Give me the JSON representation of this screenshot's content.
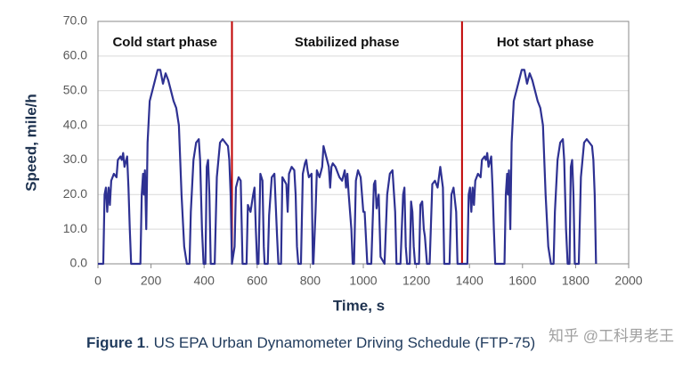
{
  "chart_data": {
    "type": "line",
    "caption_label": "Figure 1",
    "caption": ". US EPA Urban Dynamometer Driving Schedule (FTP-75)",
    "watermark": "知乎 @工科男老王",
    "x_label": "Time, s",
    "y_label": "Speed, mile/h",
    "color": "#2e3192",
    "boundary_color": "#c00000",
    "grid": true,
    "phases": [
      "Cold start phase",
      "Stabilized phase",
      "Hot start phase"
    ],
    "phase_boundaries": [
      505,
      1372
    ],
    "xlim": [
      0,
      2000
    ],
    "ylim": [
      0,
      70
    ],
    "xticks": [
      0,
      200,
      400,
      600,
      800,
      1000,
      1200,
      1400,
      1600,
      1800,
      2000
    ],
    "yticks": [
      {
        "value": 0,
        "label": "0.0"
      },
      {
        "value": 10,
        "label": "10.0"
      },
      {
        "value": 20,
        "label": "20.0"
      },
      {
        "value": 30,
        "label": "30.0"
      },
      {
        "value": 40,
        "label": "40.0"
      },
      {
        "value": 50,
        "label": "50.0"
      },
      {
        "value": 60,
        "label": "60.0"
      },
      {
        "value": 70,
        "label": "70.0"
      }
    ],
    "x": [
      0,
      20,
      25,
      30,
      35,
      40,
      45,
      50,
      60,
      70,
      75,
      85,
      90,
      95,
      100,
      110,
      115,
      120,
      125,
      160,
      165,
      170,
      173,
      177,
      182,
      187,
      195,
      205,
      215,
      225,
      235,
      245,
      255,
      265,
      275,
      285,
      295,
      305,
      315,
      325,
      335,
      345,
      350,
      360,
      370,
      380,
      385,
      392,
      398,
      405,
      410,
      415,
      420,
      425,
      440,
      448,
      460,
      470,
      480,
      490,
      495,
      500,
      505,
      515,
      520,
      530,
      538,
      545,
      560,
      565,
      575,
      585,
      590,
      595,
      600,
      605,
      612,
      620,
      625,
      628,
      640,
      645,
      655,
      665,
      675,
      680,
      690,
      695,
      710,
      715,
      720,
      730,
      740,
      745,
      750,
      755,
      765,
      772,
      780,
      785,
      790,
      795,
      805,
      810,
      812,
      820,
      825,
      835,
      845,
      850,
      860,
      870,
      875,
      880,
      885,
      895,
      905,
      910,
      920,
      930,
      935,
      940,
      945,
      955,
      960,
      965,
      972,
      980,
      990,
      1000,
      1005,
      1015,
      1030,
      1040,
      1045,
      1050,
      1058,
      1065,
      1080,
      1090,
      1100,
      1110,
      1120,
      1125,
      1140,
      1150,
      1155,
      1160,
      1165,
      1175,
      1180,
      1185,
      1190,
      1195,
      1210,
      1215,
      1222,
      1228,
      1232,
      1240,
      1250,
      1260,
      1270,
      1280,
      1290,
      1300,
      1305,
      1325,
      1332,
      1340,
      1350,
      1355,
      1372,
      1392,
      1397,
      1402,
      1407,
      1412,
      1417,
      1422,
      1432,
      1442,
      1447,
      1457,
      1462,
      1467,
      1472,
      1482,
      1487,
      1492,
      1497,
      1532,
      1537,
      1542,
      1545,
      1549,
      1554,
      1559,
      1567,
      1577,
      1587,
      1597,
      1607,
      1617,
      1627,
      1637,
      1647,
      1657,
      1667,
      1677,
      1687,
      1697,
      1707,
      1717,
      1722,
      1732,
      1742,
      1752,
      1757,
      1764,
      1770,
      1777,
      1782,
      1787,
      1792,
      1797,
      1812,
      1820,
      1832,
      1842,
      1852,
      1862,
      1867,
      1872,
      1877
    ],
    "values": [
      0,
      0,
      20,
      22,
      15,
      22,
      17,
      24,
      26,
      25,
      30,
      31,
      30,
      32,
      28,
      31,
      22,
      10,
      0,
      0,
      20,
      26,
      20,
      27,
      10,
      35,
      47,
      50,
      53,
      56,
      56,
      52,
      55,
      53,
      50,
      47,
      45,
      40,
      20,
      5,
      0,
      0,
      15,
      30,
      35,
      36,
      30,
      10,
      0,
      0,
      28,
      30,
      20,
      0,
      0,
      25,
      35,
      36,
      35,
      34,
      30,
      20,
      0,
      5,
      22,
      25,
      24,
      0,
      0,
      17,
      15,
      20,
      22,
      10,
      0,
      0,
      26,
      24,
      5,
      0,
      0,
      14,
      25,
      26,
      8,
      0,
      0,
      25,
      23,
      15,
      26,
      28,
      27,
      20,
      5,
      0,
      0,
      26,
      29,
      30,
      27,
      25,
      26,
      0,
      0,
      15,
      27,
      25,
      28,
      34,
      31,
      28,
      22,
      28,
      29,
      28,
      26,
      25,
      24,
      27,
      22,
      26,
      20,
      10,
      0,
      0,
      24,
      27,
      25,
      15,
      15,
      0,
      0,
      23,
      24,
      16,
      20,
      2,
      0,
      20,
      26,
      27,
      15,
      0,
      0,
      20,
      22,
      5,
      0,
      0,
      18,
      15,
      5,
      0,
      0,
      17,
      18,
      10,
      8,
      0,
      0,
      23,
      24,
      22,
      28,
      22,
      0,
      0,
      20,
      22,
      15,
      0,
      0,
      0,
      20,
      22,
      15,
      22,
      17,
      24,
      26,
      25,
      30,
      31,
      30,
      32,
      28,
      31,
      22,
      10,
      0,
      0,
      20,
      26,
      20,
      27,
      10,
      35,
      47,
      50,
      53,
      56,
      56,
      52,
      55,
      53,
      50,
      47,
      45,
      40,
      20,
      5,
      0,
      0,
      15,
      30,
      35,
      36,
      30,
      10,
      0,
      0,
      28,
      30,
      20,
      0,
      0,
      25,
      35,
      36,
      35,
      34,
      30,
      20,
      0
    ]
  }
}
